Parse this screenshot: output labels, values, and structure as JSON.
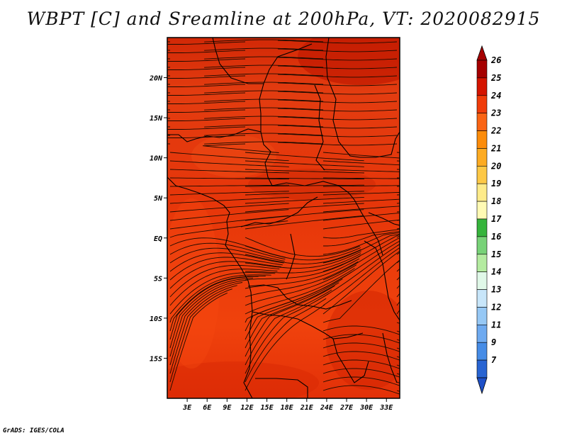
{
  "title": "WBPT [C] and Sreamline at 200hPa, VT: 2020082915",
  "credit": "GrADS: IGES/COLA",
  "map": {
    "lat_labels": [
      "20N",
      "15N",
      "10N",
      "5N",
      "EQ",
      "5S",
      "10S",
      "15S"
    ],
    "lat_values": [
      20,
      15,
      10,
      5,
      0,
      -5,
      -10,
      -15
    ],
    "lon_labels": [
      "3E",
      "6E",
      "9E",
      "12E",
      "15E",
      "18E",
      "21E",
      "24E",
      "27E",
      "30E",
      "33E"
    ],
    "lon_values": [
      3,
      6,
      9,
      12,
      15,
      18,
      21,
      24,
      27,
      30,
      33
    ],
    "lon_range": [
      0,
      35
    ],
    "lat_range": [
      -20,
      25
    ],
    "field_color": "#ee3a08",
    "field_dark": "#cc2000",
    "stream_color": "#1a0a00"
  },
  "colorbar": {
    "labels": [
      "26",
      "25",
      "24",
      "23",
      "22",
      "21",
      "20",
      "19",
      "18",
      "17",
      "16",
      "15",
      "14",
      "13",
      "12",
      "11",
      "9",
      "7"
    ],
    "colors": [
      "#a50000",
      "#d41400",
      "#f03c0a",
      "#fa6414",
      "#fc8c0a",
      "#fdab22",
      "#fdc846",
      "#feeb8a",
      "#fffab4",
      "#36b43c",
      "#78d278",
      "#b4eba0",
      "#e0f8e8",
      "#c8e6fa",
      "#96c8f5",
      "#6eaaf0",
      "#468ce6",
      "#2864d2"
    ],
    "top_arrow_color": "#a50000",
    "bottom_arrow_color": "#1e50c8"
  }
}
